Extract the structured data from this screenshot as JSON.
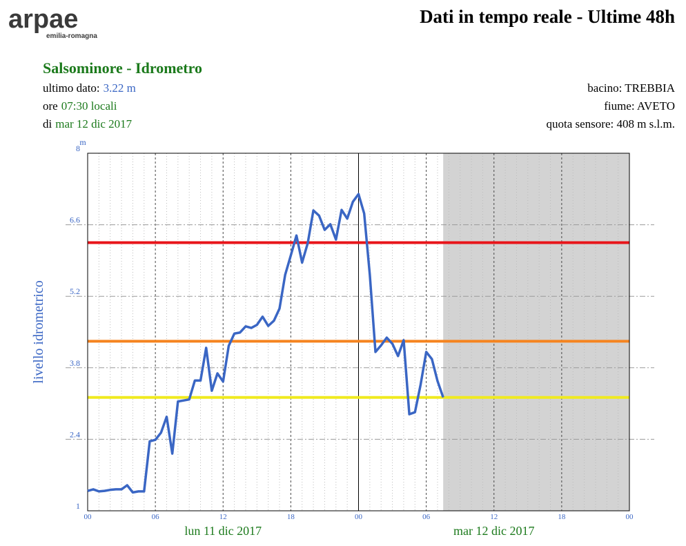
{
  "logo": {
    "name": "arpae",
    "sub": "emilia-romagna"
  },
  "header": {
    "title": "Dati in tempo reale - Ultime 48h",
    "station": "Salsominore - Idrometro",
    "last_label": "ultimo dato:",
    "last_value": "3.22 m",
    "time_label": "ore",
    "time_value": "07:30 locali",
    "date_label": "di",
    "date_value": "mar 12 dic 2017",
    "basin": "bacino: TREBBIA",
    "river": "fiume: AVETO",
    "sensor": "quota sensore: 408 m s.l.m."
  },
  "chart_data": {
    "type": "line",
    "y_label": "livello idrometrico",
    "y_unit": "m",
    "color": "#3a66c4",
    "x": [
      0,
      0.5,
      1,
      1.5,
      2,
      2.5,
      3,
      3.5,
      4,
      4.5,
      5,
      5.5,
      6,
      6.5,
      7,
      7.5,
      8,
      8.5,
      9,
      9.5,
      10,
      10.5,
      11,
      11.5,
      12,
      12.5,
      13,
      13.5,
      14,
      14.5,
      15,
      15.5,
      16,
      16.5,
      17,
      17.5,
      18,
      18.5,
      19,
      19.5,
      20,
      20.5,
      21,
      21.5,
      22,
      22.5,
      23,
      23.5,
      24,
      24.5,
      25,
      25.5,
      26,
      26.5,
      27,
      27.5,
      28,
      28.5,
      29,
      29.5,
      30,
      30.5,
      31,
      31.5
    ],
    "values": [
      1.39,
      1.42,
      1.38,
      1.39,
      1.41,
      1.42,
      1.42,
      1.5,
      1.36,
      1.38,
      1.38,
      2.36,
      2.39,
      2.53,
      2.84,
      2.12,
      3.14,
      3.16,
      3.18,
      3.55,
      3.55,
      4.19,
      3.35,
      3.69,
      3.53,
      4.23,
      4.47,
      4.49,
      4.61,
      4.58,
      4.64,
      4.8,
      4.62,
      4.72,
      4.96,
      5.62,
      6.0,
      6.39,
      5.86,
      6.24,
      6.88,
      6.78,
      6.5,
      6.61,
      6.31,
      6.89,
      6.72,
      7.05,
      7.2,
      6.82,
      5.62,
      4.11,
      4.24,
      4.39,
      4.27,
      4.03,
      4.34,
      2.89,
      2.93,
      3.47,
      4.11,
      3.97,
      3.54,
      3.22
    ],
    "xlim": [
      0,
      48
    ],
    "xticks": [
      {
        "value": 0,
        "label": "00"
      },
      {
        "value": 6,
        "label": "06"
      },
      {
        "value": 12,
        "label": "12"
      },
      {
        "value": 18,
        "label": "18"
      },
      {
        "value": 24,
        "label": "00"
      },
      {
        "value": 30,
        "label": "06"
      },
      {
        "value": 36,
        "label": "12"
      },
      {
        "value": 42,
        "label": "18"
      },
      {
        "value": 48,
        "label": "00"
      }
    ],
    "x_minor_ticks": [
      1,
      2,
      3,
      4,
      5,
      7,
      8,
      9,
      10,
      11,
      13,
      14,
      15,
      16,
      17,
      19,
      20,
      21,
      22,
      23,
      25,
      26,
      27,
      28,
      29,
      31,
      32,
      33,
      34,
      35,
      37,
      38,
      39,
      40,
      41,
      43,
      44,
      45,
      46,
      47
    ],
    "days": [
      {
        "label": "lun 11 dic 2017",
        "start": 0,
        "end": 24
      },
      {
        "label": "mar 12 dic 2017",
        "start": 24,
        "end": 48
      }
    ],
    "ylim": [
      1,
      8
    ],
    "yticks": [
      1,
      2.4,
      3.8,
      5.2,
      6.6,
      8
    ],
    "shaded_from": 31.5,
    "shade_color": "#d3d3d3",
    "thresholds": [
      {
        "value": 6.25,
        "color": "#e8141a"
      },
      {
        "value": 4.32,
        "color": "#f5841f"
      },
      {
        "value": 3.22,
        "color": "#f0ea1e"
      }
    ]
  }
}
